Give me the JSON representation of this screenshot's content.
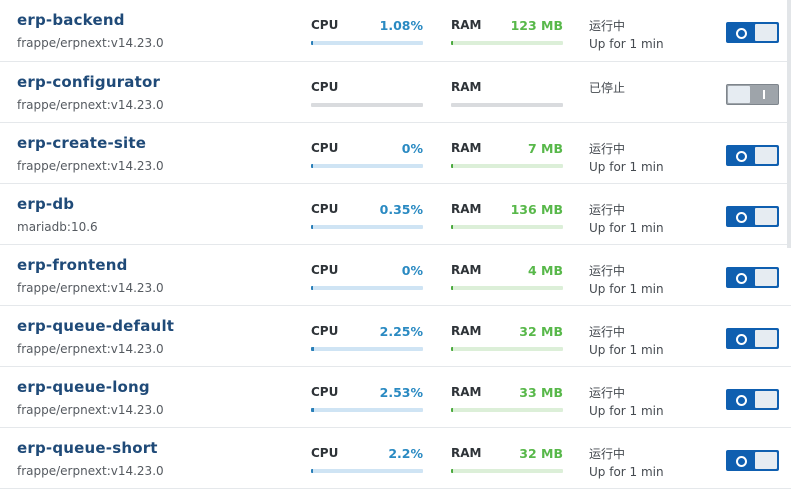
{
  "labels": {
    "cpu": "CPU",
    "ram": "RAM"
  },
  "containers": [
    {
      "name": "erp-backend",
      "image": "frappe/erpnext:v14.23.0",
      "cpu": "1.08%",
      "cpu_fraction": 0.0108,
      "ram": "123 MB",
      "ram_fraction": 0.02,
      "status": "运行中",
      "uptime": "Up for 1 min",
      "running": true
    },
    {
      "name": "erp-configurator",
      "image": "frappe/erpnext:v14.23.0",
      "cpu": "",
      "cpu_fraction": 0,
      "ram": "",
      "ram_fraction": 0,
      "status": "已停止",
      "uptime": "",
      "running": false
    },
    {
      "name": "erp-create-site",
      "image": "frappe/erpnext:v14.23.0",
      "cpu": "0%",
      "cpu_fraction": 0,
      "ram": "7 MB",
      "ram_fraction": 0.01,
      "status": "运行中",
      "uptime": "Up for 1 min",
      "running": true
    },
    {
      "name": "erp-db",
      "image": "mariadb:10.6",
      "cpu": "0.35%",
      "cpu_fraction": 0.0035,
      "ram": "136 MB",
      "ram_fraction": 0.02,
      "status": "运行中",
      "uptime": "Up for 1 min",
      "running": true
    },
    {
      "name": "erp-frontend",
      "image": "frappe/erpnext:v14.23.0",
      "cpu": "0%",
      "cpu_fraction": 0,
      "ram": "4 MB",
      "ram_fraction": 0.01,
      "status": "运行中",
      "uptime": "Up for 1 min",
      "running": true
    },
    {
      "name": "erp-queue-default",
      "image": "frappe/erpnext:v14.23.0",
      "cpu": "2.25%",
      "cpu_fraction": 0.0225,
      "ram": "32 MB",
      "ram_fraction": 0.01,
      "status": "运行中",
      "uptime": "Up for 1 min",
      "running": true
    },
    {
      "name": "erp-queue-long",
      "image": "frappe/erpnext:v14.23.0",
      "cpu": "2.53%",
      "cpu_fraction": 0.0253,
      "ram": "33 MB",
      "ram_fraction": 0.01,
      "status": "运行中",
      "uptime": "Up for 1 min",
      "running": true
    },
    {
      "name": "erp-queue-short",
      "image": "frappe/erpnext:v14.23.0",
      "cpu": "2.2%",
      "cpu_fraction": 0.022,
      "ram": "32 MB",
      "ram_fraction": 0.01,
      "status": "运行中",
      "uptime": "Up for 1 min",
      "running": true
    }
  ],
  "toggle_icons": {
    "on": "power-on-icon",
    "off": "power-off-icon"
  }
}
